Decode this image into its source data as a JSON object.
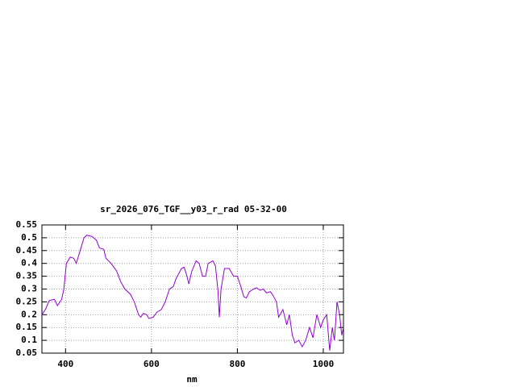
{
  "chart_data": {
    "type": "line",
    "title": "sr_2026_076_TGF__y03_r_rad 05-32-00",
    "x_label": "nm",
    "x": [
      345,
      353,
      362,
      374,
      381,
      391,
      396,
      402,
      411,
      419,
      425,
      434,
      443,
      449,
      462,
      472,
      479,
      489,
      494,
      506,
      519,
      528,
      538,
      551,
      560,
      570,
      575,
      581,
      589,
      594,
      604,
      613,
      623,
      632,
      642,
      651,
      657,
      670,
      676,
      681,
      687,
      694,
      704,
      711,
      719,
      726,
      732,
      743,
      749,
      755,
      758,
      762,
      770,
      781,
      791,
      800,
      808,
      815,
      821,
      828,
      838,
      845,
      853,
      860,
      868,
      877,
      883,
      891,
      896,
      906,
      915,
      921,
      928,
      934,
      943,
      951,
      959,
      968,
      976,
      985,
      994,
      1000,
      1008,
      1015,
      1021,
      1026,
      1032,
      1038,
      1043,
      1047
    ],
    "series": [
      {
        "name": "sr_2026_076_TGF__y03_r_rad",
        "color": "#9400d3",
        "values": [
          0.2,
          0.22,
          0.255,
          0.26,
          0.235,
          0.26,
          0.3,
          0.4,
          0.425,
          0.42,
          0.4,
          0.45,
          0.5,
          0.51,
          0.505,
          0.49,
          0.46,
          0.455,
          0.42,
          0.4,
          0.37,
          0.33,
          0.3,
          0.28,
          0.25,
          0.2,
          0.19,
          0.205,
          0.2,
          0.185,
          0.19,
          0.21,
          0.22,
          0.25,
          0.3,
          0.31,
          0.34,
          0.38,
          0.385,
          0.36,
          0.32,
          0.37,
          0.41,
          0.4,
          0.35,
          0.35,
          0.4,
          0.41,
          0.39,
          0.29,
          0.19,
          0.3,
          0.38,
          0.38,
          0.35,
          0.35,
          0.31,
          0.27,
          0.265,
          0.29,
          0.3,
          0.305,
          0.295,
          0.3,
          0.285,
          0.29,
          0.275,
          0.25,
          0.19,
          0.22,
          0.16,
          0.2,
          0.12,
          0.09,
          0.1,
          0.075,
          0.1,
          0.15,
          0.11,
          0.2,
          0.15,
          0.18,
          0.2,
          0.06,
          0.15,
          0.1,
          0.25,
          0.2,
          0.12,
          0.15
        ]
      }
    ],
    "xlim": [
      345,
      1047
    ],
    "ylim": [
      0.05,
      0.55
    ],
    "xticks": [
      400,
      600,
      800,
      1000
    ],
    "yticks": [
      0.05,
      0.1,
      0.15,
      0.2,
      0.25,
      0.3,
      0.35,
      0.4,
      0.45,
      0.5,
      0.55
    ],
    "grid": true
  }
}
